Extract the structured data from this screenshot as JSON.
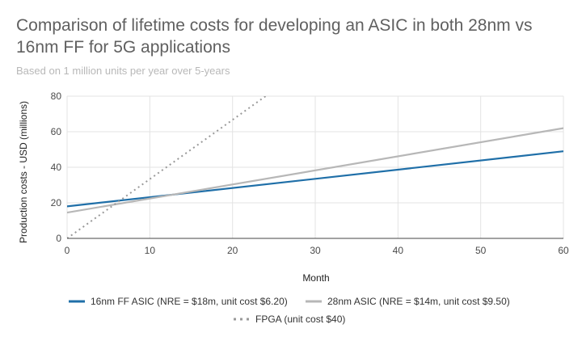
{
  "chart_data": {
    "type": "line",
    "title": "Comparison of lifetime costs for developing an ASIC in both 28nm vs 16nm FF for 5G applications",
    "subtitle": "Based on 1 million units per year over 5-years",
    "xlabel": "Month",
    "ylabel": "Production costs - USD (millions)",
    "xlim": [
      0,
      60
    ],
    "ylim": [
      0,
      80
    ],
    "xticks": [
      0,
      10,
      20,
      30,
      40,
      50,
      60
    ],
    "yticks": [
      0,
      20,
      40,
      60,
      80
    ],
    "grid": true,
    "legend_position": "bottom",
    "series": [
      {
        "name": "16nm FF ASIC (NRE = $18m, unit cost $6.20)",
        "x": [
          0,
          60
        ],
        "values": [
          18,
          49
        ],
        "color": "#1f6fa8",
        "style": "solid"
      },
      {
        "name": "28nm ASIC (NRE = $14m, unit cost $9.50)",
        "x": [
          0,
          60
        ],
        "values": [
          14.5,
          62
        ],
        "color": "#b7b7b7",
        "style": "solid"
      },
      {
        "name": "FPGA (unit cost $40)",
        "x": [
          0,
          24
        ],
        "values": [
          0,
          80
        ],
        "color": "#999999",
        "style": "dotted"
      }
    ]
  }
}
